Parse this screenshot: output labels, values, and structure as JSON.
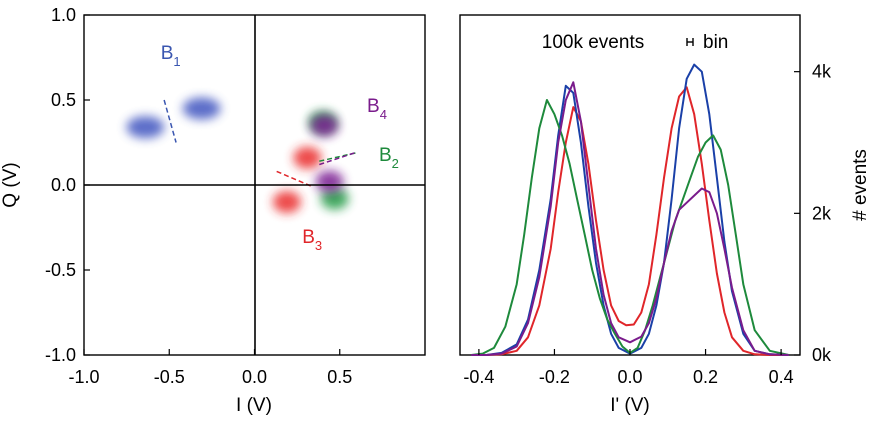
{
  "chart_data": [
    {
      "type": "scatter",
      "xlabel": "I (V)",
      "ylabel": "Q (V)",
      "xlim": [
        -1.0,
        1.0
      ],
      "ylim": [
        -1.0,
        1.0
      ],
      "x_ticks": [
        -1.0,
        -0.5,
        0.0,
        0.5
      ],
      "x_tick_labels": [
        "-1.0",
        "-0.5",
        "0.0",
        "0.5"
      ],
      "y_ticks": [
        -1.0,
        -0.5,
        0.0,
        0.5,
        1.0
      ],
      "y_tick_labels": [
        "-1.0",
        "-0.5",
        "0.0",
        "0.5",
        "1.0"
      ],
      "series": [
        {
          "label_text": "B",
          "label_sub": "1",
          "color": "#3a56b0",
          "blob_color": "#3f55c0",
          "blobs": [
            {
              "x": -0.64,
              "y": 0.34
            },
            {
              "x": -0.31,
              "y": 0.45
            }
          ],
          "label_pos": {
            "x": -0.55,
            "y": 0.74
          },
          "divider": {
            "from": [
              -0.53,
              0.5
            ],
            "to": [
              -0.46,
              0.25
            ]
          }
        },
        {
          "label_text": "B",
          "label_sub": "2",
          "color": "#1e8a3c",
          "blob_color": "#249a44",
          "blobs": [
            {
              "x": 0.4,
              "y": 0.37
            },
            {
              "x": 0.47,
              "y": -0.08
            }
          ],
          "label_pos": {
            "x": 0.73,
            "y": 0.14
          },
          "divider": {
            "from": [
              0.38,
              0.14
            ],
            "to": [
              0.6,
              0.19
            ]
          }
        },
        {
          "label_text": "B",
          "label_sub": "3",
          "color": "#e0262a",
          "blob_color": "#ea2a2a",
          "blobs": [
            {
              "x": 0.31,
              "y": 0.16
            },
            {
              "x": 0.19,
              "y": -0.1
            }
          ],
          "label_pos": {
            "x": 0.28,
            "y": -0.34
          },
          "divider": {
            "from": [
              0.13,
              0.08
            ],
            "to": [
              0.34,
              -0.01
            ]
          }
        },
        {
          "label_text": "B",
          "label_sub": "4",
          "color": "#7a1c8c",
          "blob_color": "#7a1c92",
          "blobs": [
            {
              "x": 0.41,
              "y": 0.35
            },
            {
              "x": 0.44,
              "y": 0.02
            }
          ],
          "label_pos": {
            "x": 0.66,
            "y": 0.43
          },
          "divider": {
            "from": [
              0.38,
              0.12
            ],
            "to": [
              0.59,
              0.19
            ]
          }
        }
      ]
    },
    {
      "type": "line",
      "annotation": "100k events",
      "bin_label": "bin",
      "xlabel": "I' (V)",
      "ylabel": "# events",
      "xlim": [
        -0.45,
        0.45
      ],
      "ylim": [
        0,
        4800
      ],
      "x_ticks": [
        -0.4,
        -0.2,
        0.0,
        0.2,
        0.4
      ],
      "x_tick_labels": [
        "-0.4",
        "-0.2",
        "0.0",
        "0.2",
        "0.4"
      ],
      "y_ticks": [
        0,
        2000,
        4000
      ],
      "y_tick_labels": [
        "0k",
        "2k",
        "4k"
      ],
      "series": [
        {
          "color": "#e0262a",
          "baseline": 420,
          "x": [
            -0.42,
            -0.38,
            -0.34,
            -0.3,
            -0.27,
            -0.24,
            -0.21,
            -0.19,
            -0.17,
            -0.15,
            -0.13,
            -0.11,
            -0.09,
            -0.07,
            -0.05,
            -0.03,
            -0.01,
            0.01,
            0.03,
            0.05,
            0.07,
            0.09,
            0.11,
            0.13,
            0.15,
            0.17,
            0.19,
            0.21,
            0.23,
            0.25,
            0.27,
            0.3,
            0.33,
            0.37,
            0.42
          ],
          "y": [
            0,
            0,
            10,
            60,
            250,
            700,
            1500,
            2300,
            3000,
            3500,
            3300,
            2700,
            1900,
            1200,
            700,
            480,
            420,
            430,
            600,
            1000,
            1700,
            2500,
            3200,
            3650,
            3780,
            3400,
            2700,
            1900,
            1150,
            600,
            250,
            60,
            10,
            0,
            0
          ]
        },
        {
          "color": "#1a40a8",
          "x": [
            -0.42,
            -0.38,
            -0.34,
            -0.3,
            -0.27,
            -0.24,
            -0.21,
            -0.19,
            -0.17,
            -0.15,
            -0.13,
            -0.11,
            -0.09,
            -0.07,
            -0.05,
            -0.03,
            0.0,
            0.03,
            0.05,
            0.07,
            0.09,
            0.11,
            0.13,
            0.15,
            0.17,
            0.19,
            0.21,
            0.23,
            0.25,
            0.27,
            0.3,
            0.33,
            0.37,
            0.42
          ],
          "y": [
            0,
            0,
            30,
            150,
            500,
            1200,
            2200,
            3100,
            3800,
            3700,
            3000,
            2100,
            1300,
            700,
            300,
            100,
            20,
            100,
            300,
            700,
            1300,
            2200,
            3200,
            3900,
            4100,
            4000,
            3400,
            2500,
            1600,
            900,
            300,
            60,
            10,
            0
          ]
        },
        {
          "color": "#1e8a3c",
          "x": [
            -0.42,
            -0.39,
            -0.36,
            -0.33,
            -0.3,
            -0.28,
            -0.26,
            -0.24,
            -0.22,
            -0.2,
            -0.18,
            -0.16,
            -0.14,
            -0.12,
            -0.1,
            -0.08,
            -0.06,
            -0.04,
            -0.02,
            0.0,
            0.02,
            0.04,
            0.06,
            0.08,
            0.1,
            0.12,
            0.14,
            0.16,
            0.18,
            0.2,
            0.22,
            0.24,
            0.26,
            0.28,
            0.3,
            0.33,
            0.37,
            0.42
          ],
          "y": [
            0,
            20,
            100,
            400,
            1000,
            1700,
            2500,
            3200,
            3600,
            3400,
            3100,
            2700,
            2200,
            1700,
            1200,
            800,
            500,
            300,
            120,
            30,
            100,
            350,
            700,
            1100,
            1500,
            1900,
            2200,
            2500,
            2800,
            3000,
            3100,
            2900,
            2400,
            1700,
            1000,
            350,
            60,
            0
          ]
        },
        {
          "color": "#7a1c8c",
          "x": [
            -0.42,
            -0.38,
            -0.34,
            -0.3,
            -0.27,
            -0.24,
            -0.21,
            -0.19,
            -0.17,
            -0.15,
            -0.13,
            -0.11,
            -0.09,
            -0.07,
            -0.05,
            -0.03,
            0.0,
            0.03,
            0.05,
            0.07,
            0.09,
            0.11,
            0.13,
            0.15,
            0.17,
            0.19,
            0.21,
            0.23,
            0.25,
            0.27,
            0.3,
            0.33,
            0.37,
            0.42
          ],
          "y": [
            0,
            0,
            20,
            120,
            450,
            1100,
            2100,
            3000,
            3600,
            3850,
            3300,
            2400,
            1500,
            850,
            450,
            250,
            180,
            260,
            450,
            800,
            1300,
            1750,
            2050,
            2150,
            2250,
            2350,
            2300,
            2000,
            1500,
            950,
            350,
            60,
            10,
            0
          ]
        }
      ]
    }
  ]
}
